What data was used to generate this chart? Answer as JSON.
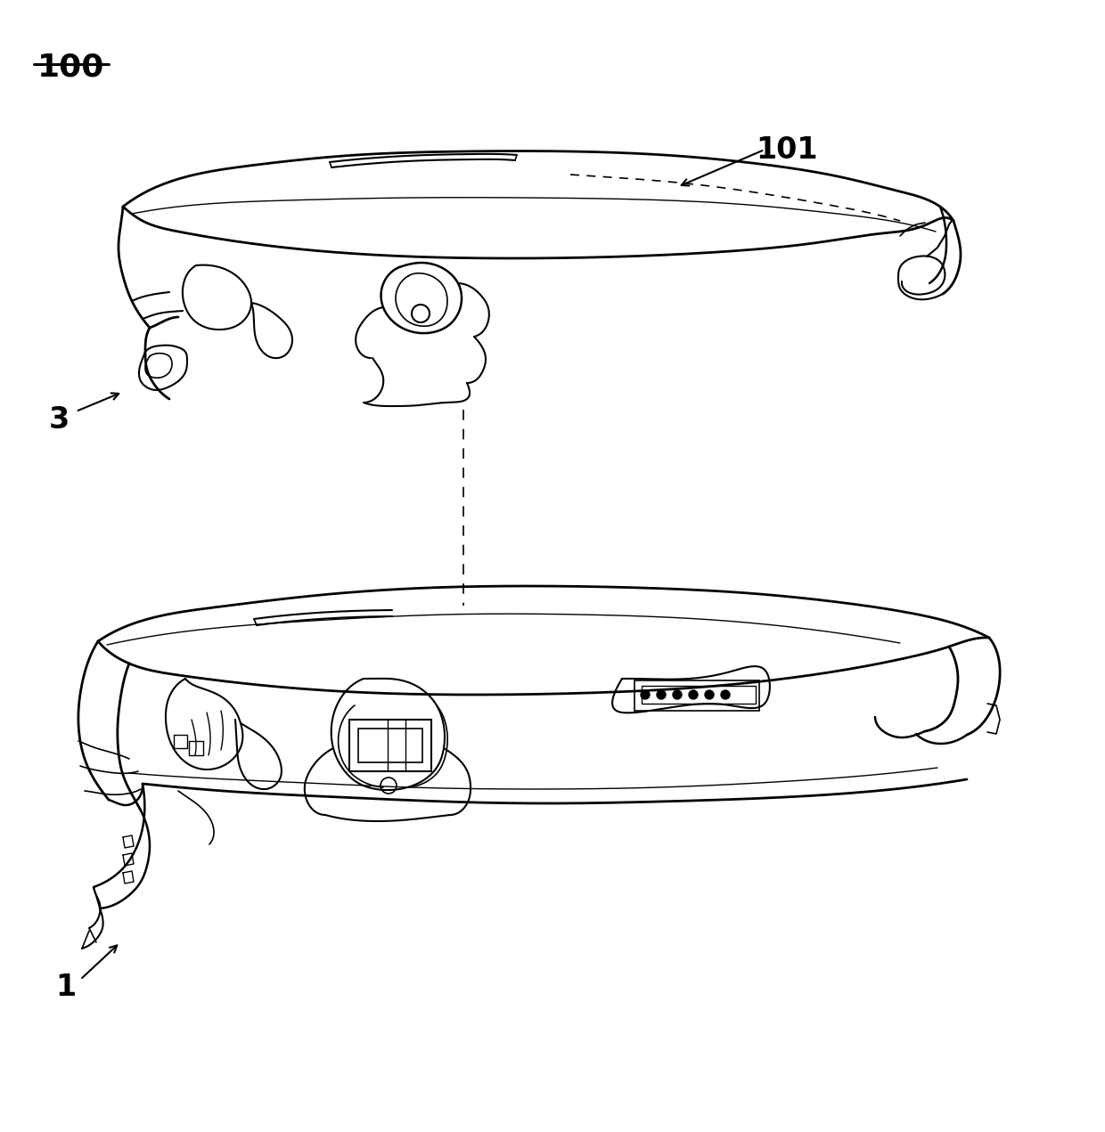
{
  "background_color": "#ffffff",
  "line_color": "#000000",
  "label_100": "100",
  "label_101": "101",
  "label_1": "1",
  "label_3": "3",
  "fig_width": 12.4,
  "fig_height": 12.71,
  "dpi": 100
}
